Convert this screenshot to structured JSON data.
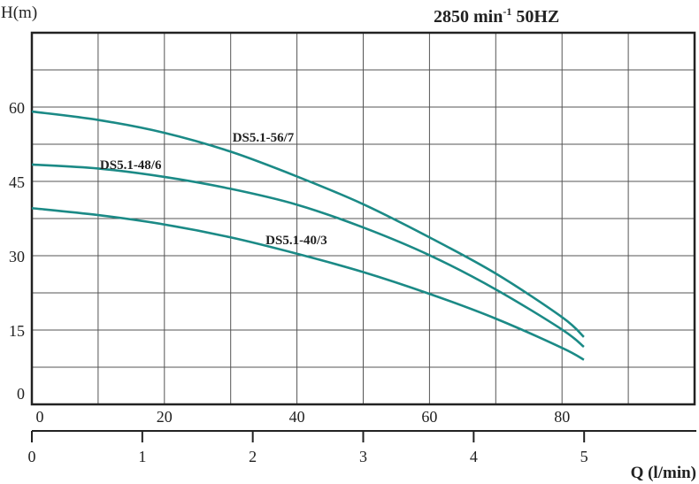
{
  "chart_data": {
    "type": "line",
    "title": "2850 min",
    "title_sup": "-1",
    "title_suffix": " 50HZ",
    "ylabel": "H(m)",
    "xlabel": "Q (l/min)",
    "ylim": [
      0,
      75
    ],
    "xlim": [
      0,
      100
    ],
    "grid": true,
    "y_ticks": [
      0,
      15,
      30,
      45,
      60
    ],
    "x_ticks_top": [
      0,
      20,
      40,
      60,
      80
    ],
    "x_ticks_bottom": [
      0,
      1,
      2,
      3,
      4,
      5
    ],
    "x_bottom_to_top_factor": 16.667,
    "line_color": "#1b8a86",
    "series": [
      {
        "name": "DS5.1-56/7",
        "label_at": [
          30,
          53
        ],
        "x": [
          0,
          10,
          20,
          30,
          40,
          50,
          60,
          70,
          80,
          83.3
        ],
        "y": [
          59.1,
          57.4,
          54.8,
          51.0,
          46.0,
          40.4,
          33.7,
          26.4,
          17.6,
          13.6
        ]
      },
      {
        "name": "DS5.1-48/6",
        "label_at": [
          10,
          47.5
        ],
        "x": [
          0,
          10,
          20,
          30,
          40,
          50,
          60,
          70,
          80,
          83.3
        ],
        "y": [
          48.4,
          47.6,
          45.9,
          43.5,
          40.3,
          35.7,
          30.1,
          23.2,
          15.1,
          11.6
        ]
      },
      {
        "name": "DS5.1-40/3",
        "label_at": [
          35,
          32.3
        ],
        "x": [
          0,
          10,
          20,
          30,
          40,
          50,
          60,
          70,
          80,
          83.3
        ],
        "y": [
          39.6,
          38.2,
          36.3,
          33.7,
          30.4,
          26.7,
          22.3,
          17.3,
          11.4,
          9.0
        ]
      }
    ]
  }
}
